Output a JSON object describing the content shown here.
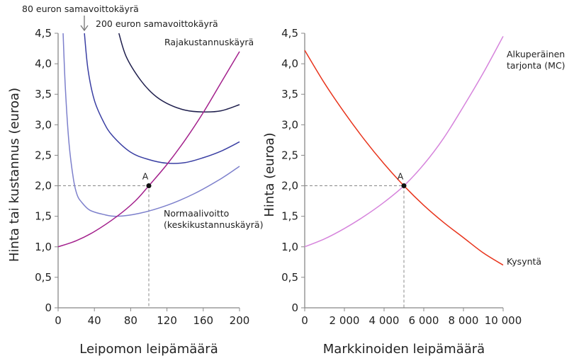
{
  "chart_data": [
    {
      "type": "line",
      "xlabel": "Leipomon leipämäärä",
      "ylabel": "Hinta tai kustannus (euroa)",
      "xlim": [
        0,
        200
      ],
      "ylim": [
        0,
        4.5
      ],
      "xticks": [
        "0",
        "40",
        "80",
        "120",
        "160",
        "200"
      ],
      "xtick_values": [
        0,
        40,
        80,
        120,
        160,
        200
      ],
      "yticks": [
        "0",
        "0,5",
        "1,0",
        "1,5",
        "2,0",
        "2,5",
        "3,0",
        "3,5",
        "4,0",
        "4,5"
      ],
      "ytick_values": [
        0,
        0.5,
        1,
        1.5,
        2,
        2.5,
        3,
        3.5,
        4,
        4.5
      ],
      "series": [
        {
          "name": "Normaalivoitto\n(keskikustannuskäyrä)",
          "color": "#7d80cc",
          "x": [
            5.5,
            8,
            12,
            17,
            21,
            26,
            35,
            50,
            65,
            90,
            120,
            150,
            180,
            200
          ],
          "y": [
            4.5,
            3.6,
            2.7,
            2.1,
            1.85,
            1.73,
            1.6,
            1.53,
            1.5,
            1.55,
            1.68,
            1.87,
            2.12,
            2.32
          ]
        },
        {
          "name": "80 euron samavoittokäyrä",
          "color": "#3a3fa3",
          "x": [
            29,
            33,
            40,
            50,
            60,
            80,
            100,
            120,
            140,
            160,
            180,
            200
          ],
          "y": [
            4.5,
            3.9,
            3.4,
            3.05,
            2.82,
            2.55,
            2.43,
            2.37,
            2.38,
            2.46,
            2.57,
            2.72
          ]
        },
        {
          "name": "200 euron samavoittokäyrä",
          "color": "#1f1f4d",
          "x": [
            67,
            75,
            90,
            105,
            120,
            140,
            160,
            180,
            200
          ],
          "y": [
            4.5,
            4.12,
            3.75,
            3.5,
            3.35,
            3.24,
            3.21,
            3.23,
            3.33
          ]
        },
        {
          "name": "Rajakustannuskäyrä",
          "color": "#a3208c",
          "x": [
            0,
            20,
            40,
            65,
            85,
            100,
            120,
            140,
            160,
            180,
            200
          ],
          "y": [
            1.0,
            1.1,
            1.25,
            1.5,
            1.75,
            2.0,
            2.35,
            2.75,
            3.2,
            3.7,
            4.2
          ]
        }
      ],
      "point": {
        "label": "A",
        "x": 100,
        "y": 2.0
      },
      "annotation_arrow": "80 euron samavoittokäyrä"
    },
    {
      "type": "line",
      "xlabel": "Markkinoiden leipämäärä",
      "ylabel": "Hinta (euroa)",
      "xlim": [
        0,
        10000
      ],
      "ylim": [
        0,
        4.5
      ],
      "xticks": [
        "0",
        "2 000",
        "4 000",
        "6 000",
        "8 000",
        "10 000"
      ],
      "xtick_values": [
        0,
        2000,
        4000,
        6000,
        8000,
        10000
      ],
      "yticks": [
        "0",
        "0,5",
        "1,0",
        "1,5",
        "2,0",
        "2,5",
        "3,0",
        "3,5",
        "4,0",
        "4,5"
      ],
      "ytick_values": [
        0,
        0.5,
        1,
        1.5,
        2,
        2.5,
        3,
        3.5,
        4,
        4.5
      ],
      "series": [
        {
          "name": "Alkuperäinen\ntarjonta (MC)",
          "color": "#d684dc",
          "x": [
            0,
            1000,
            2000,
            3000,
            4000,
            5000,
            6000,
            7000,
            8000,
            9000,
            10000
          ],
          "y": [
            1.0,
            1.13,
            1.3,
            1.5,
            1.73,
            2.0,
            2.35,
            2.78,
            3.3,
            3.85,
            4.45
          ]
        },
        {
          "name": "Kysyntä",
          "color": "#e8341c",
          "x": [
            0,
            1000,
            2000,
            3000,
            4000,
            5000,
            6000,
            7000,
            8000,
            9000,
            10000
          ],
          "y": [
            4.22,
            3.68,
            3.2,
            2.76,
            2.36,
            2.0,
            1.68,
            1.4,
            1.15,
            0.9,
            0.7
          ]
        }
      ],
      "point": {
        "label": "A",
        "x": 5000,
        "y": 2.0
      }
    }
  ]
}
